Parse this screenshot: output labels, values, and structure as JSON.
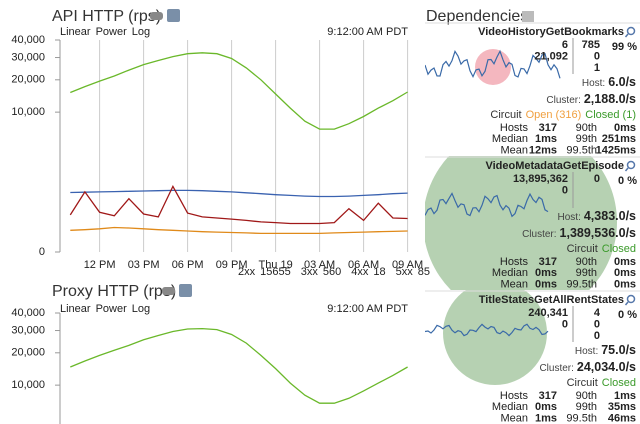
{
  "api_panel": {
    "title": "API HTTP (rps)",
    "scale_options": [
      "Linear",
      "Power",
      "Log"
    ],
    "timestamp": "9:12:00 AM PDT",
    "chart": {
      "type": "line",
      "yscale": "power",
      "exponent": 0.3,
      "xlim": [
        9.3,
        33.3
      ],
      "xticks": [
        {
          "value": 12,
          "label": "12 PM"
        },
        {
          "value": 15,
          "label": "03 PM"
        },
        {
          "value": 18,
          "label": "06 PM"
        },
        {
          "value": 21,
          "label": "09 PM"
        },
        {
          "value": 24,
          "label": "Thu 19"
        },
        {
          "value": 27,
          "label": "03 AM"
        },
        {
          "value": 30,
          "label": "06 AM"
        },
        {
          "value": 33,
          "label": "09 AM"
        }
      ],
      "ylim": [
        0,
        40000
      ],
      "yticks": [
        0,
        {
          "value": 10000,
          "label": "10,000"
        },
        {
          "value": 20000,
          "label": "20,000"
        },
        {
          "value": 30000,
          "label": "30,000"
        },
        {
          "value": 40000,
          "label": "40,000"
        }
      ],
      "grid": true,
      "x": [
        10,
        11,
        12,
        13,
        14,
        15,
        16,
        17,
        18,
        19,
        20,
        21,
        22,
        23,
        24,
        25,
        26,
        27,
        28,
        29,
        30,
        31,
        32,
        33
      ],
      "series": [
        {
          "name": "2xx",
          "color": "#6ab82a",
          "values": [
            15500,
            17500,
            19500,
            21500,
            24000,
            26500,
            28500,
            30500,
            32000,
            32500,
            32000,
            29500,
            25000,
            20000,
            15000,
            11000,
            8000,
            6500,
            6500,
            7500,
            9000,
            11000,
            13000,
            15655
          ]
        },
        {
          "name": "3xx",
          "color": "#3a62b0",
          "values": [
            580,
            590,
            600,
            610,
            620,
            630,
            640,
            650,
            650,
            640,
            620,
            600,
            570,
            540,
            510,
            490,
            470,
            460,
            460,
            470,
            490,
            510,
            540,
            560
          ]
        },
        {
          "name": "4xx",
          "color": "#e08a1a",
          "values": [
            20,
            22,
            25,
            30,
            28,
            25,
            22,
            20,
            18,
            16,
            15,
            14,
            13,
            12,
            12,
            12,
            12,
            12,
            13,
            14,
            15,
            16,
            17,
            18
          ]
        },
        {
          "name": "5xx",
          "color": "#a01818",
          "values": [
            120,
            600,
            150,
            110,
            400,
            130,
            100,
            800,
            140,
            100,
            90,
            80,
            70,
            60,
            55,
            50,
            50,
            50,
            55,
            200,
            70,
            300,
            90,
            85
          ]
        }
      ]
    }
  },
  "proxy_panel": {
    "title": "Proxy HTTP (rps)",
    "scale_options": [
      "Linear",
      "Power",
      "Log"
    ],
    "timestamp": "9:12:00 AM PDT",
    "chart": {
      "type": "line",
      "yscale": "power",
      "exponent": 0.3,
      "xlim": [
        9.3,
        33.3
      ],
      "ylim": [
        0,
        40000
      ],
      "yticks": [
        {
          "value": 10000,
          "label": "10,000"
        },
        {
          "value": 20000,
          "label": "20,000"
        },
        {
          "value": 30000,
          "label": "30,000"
        },
        {
          "value": 40000,
          "label": "40,000"
        }
      ],
      "x": [
        10,
        11,
        12,
        13,
        14,
        15,
        16,
        17,
        18,
        19,
        20,
        21,
        22,
        23,
        24,
        25,
        26,
        27,
        28,
        29,
        30,
        31,
        32,
        33
      ],
      "series": [
        {
          "color": "#6ab82a",
          "values": [
            15000,
            17000,
            19000,
            21000,
            23000,
            25500,
            27500,
            29500,
            30800,
            31000,
            30500,
            28000,
            24000,
            19000,
            14500,
            10500,
            7800,
            6300,
            6300,
            7200,
            8700,
            10500,
            12500,
            15000
          ]
        }
      ]
    }
  },
  "dependencies": {
    "title": "Dependencies",
    "labels": {
      "host": "Host:",
      "cluster": "Cluster:",
      "circuit": "Circuit",
      "hosts": "Hosts",
      "median": "Median",
      "mean": "Mean",
      "p90": "90th",
      "p99": "99th",
      "p995": "99.5th"
    },
    "circuits": [
      {
        "name": "VideoHistoryGetBookmarks",
        "counts_left": [
          {
            "text": "6",
            "color": "#2a8a1f"
          },
          {
            "text": "21,092",
            "color": "#2222cc"
          }
        ],
        "counts_right": [
          {
            "text": "785",
            "color": "#e08a00"
          },
          {
            "text": "0",
            "color": "#8a1a9a"
          },
          {
            "text": "1",
            "color": "#dd0000"
          }
        ],
        "error": {
          "text": "99 %",
          "color": "#e01010"
        },
        "host": "6.0/s",
        "cluster": "2,188.0/s",
        "circuit_status": [
          {
            "text": "Open (316)",
            "color": "#f0a040"
          },
          {
            "text": "Closed (1)",
            "color": "#3a9a2a"
          }
        ],
        "stats": {
          "hosts": "317",
          "median": "1ms",
          "mean": "12ms",
          "p90": "0ms",
          "p99": "251ms",
          "p995": "1425ms"
        }
      },
      {
        "name": "VideoMetadataGetEpisode",
        "counts_left": [
          {
            "text": "13,895,362",
            "color": "#2a8a1f"
          },
          {
            "text": "0",
            "color": "#2222cc"
          }
        ],
        "counts_right": [
          {
            "text": "0",
            "color": "#dd0000"
          }
        ],
        "error": {
          "text": "0 %",
          "color": "#888888"
        },
        "host": "4,383.0/s",
        "cluster": "1,389,536.0/s",
        "circuit_status": [
          {
            "text": "Closed",
            "color": "#3a9a2a"
          }
        ],
        "stats": {
          "hosts": "317",
          "median": "0ms",
          "mean": "0ms",
          "p90": "0ms",
          "p99": "0ms",
          "p995": "0ms"
        }
      },
      {
        "name": "TitleStatesGetAllRentStates",
        "counts_left": [
          {
            "text": "240,341",
            "color": "#2a8a1f"
          },
          {
            "text": "0",
            "color": "#2222cc"
          }
        ],
        "counts_right": [
          {
            "text": "4",
            "color": "#e08a00"
          },
          {
            "text": "0",
            "color": "#8a1a9a"
          },
          {
            "text": "0",
            "color": "#dd0000"
          }
        ],
        "error": {
          "text": "0 %",
          "color": "#888888"
        },
        "host": "75.0/s",
        "cluster": "24,034.0/s",
        "circuit_status": [
          {
            "text": "Closed",
            "color": "#3a9a2a"
          }
        ],
        "stats": {
          "hosts": "317",
          "median": "0ms",
          "mean": "1ms",
          "p90": "1ms",
          "p99": "35ms",
          "p995": "46ms"
        }
      }
    ]
  }
}
